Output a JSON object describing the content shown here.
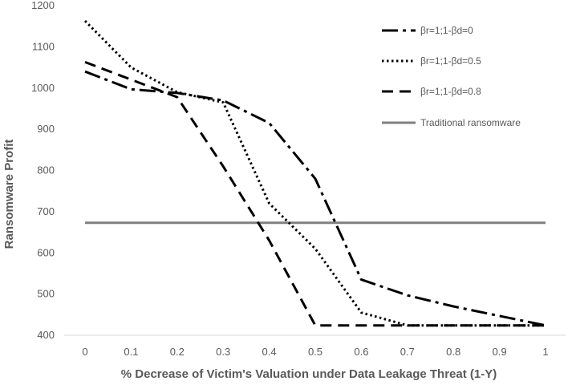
{
  "chart_data": {
    "type": "line",
    "title": "",
    "xlabel": "% Decrease of Victim's Valuation under Data Leakage Threat (1-Y)",
    "ylabel": "Ransomware Profit",
    "xlim": [
      0,
      1
    ],
    "ylim": [
      400,
      1200
    ],
    "x_ticks": [
      "0",
      "0.1",
      "0.2",
      "0.3",
      "0.4",
      "0.5",
      "0.6",
      "0.7",
      "0.8",
      "0.9",
      "1"
    ],
    "y_ticks": [
      "400",
      "500",
      "600",
      "700",
      "800",
      "900",
      "1000",
      "1100",
      "1200"
    ],
    "legend_position": "top-right",
    "grid": false,
    "series": [
      {
        "name": "βr=1;1-βd=0",
        "style": "dashdot",
        "color": "#000000",
        "x": [
          0,
          0.1,
          0.2,
          0.3,
          0.4,
          0.5,
          0.6,
          0.7,
          0.8,
          0.9,
          1.0
        ],
        "y": [
          1040,
          997,
          988,
          970,
          915,
          780,
          535,
          497,
          470,
          447,
          424
        ]
      },
      {
        "name": "βr=1;1-βd=0.5",
        "style": "dotted",
        "color": "#000000",
        "x": [
          0,
          0.1,
          0.2,
          0.3,
          0.4,
          0.5,
          0.6,
          0.7,
          0.8,
          0.9,
          1.0
        ],
        "y": [
          1163,
          1050,
          990,
          965,
          720,
          610,
          455,
          424,
          424,
          424,
          424
        ]
      },
      {
        "name": "βr=1;1-βd=0.8",
        "style": "dashed",
        "color": "#000000",
        "x": [
          0,
          0.2,
          0.3,
          0.4,
          0.5,
          0.6,
          0.7,
          0.8,
          0.9,
          1.0
        ],
        "y": [
          1063,
          978,
          810,
          630,
          424,
          424,
          424,
          424,
          424,
          424
        ]
      },
      {
        "name": "Traditional ransomware",
        "style": "solid",
        "color": "#808080",
        "x": [
          0,
          1.0
        ],
        "y": [
          673,
          673
        ]
      }
    ]
  }
}
